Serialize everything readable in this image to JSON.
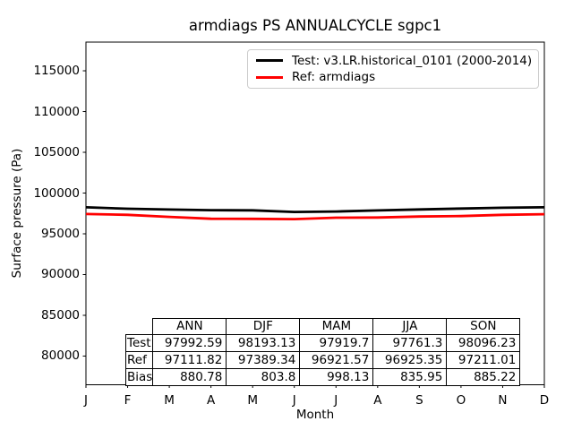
{
  "chart_data": {
    "type": "line",
    "title": "armdiags PS ANNUALCYCLE sgpc1",
    "xlabel": "Month",
    "ylabel": "Surface pressure (Pa)",
    "x_ticklabels": [
      "J",
      "F",
      "M",
      "A",
      "M",
      "J",
      "J",
      "A",
      "S",
      "O",
      "N",
      "D"
    ],
    "y_ticks": [
      80000,
      85000,
      90000,
      95000,
      100000,
      105000,
      110000,
      115000
    ],
    "ylim": [
      76480,
      118520
    ],
    "grid": false,
    "legend_position": "upper right",
    "legend_border_color": "#cccccc",
    "series": [
      {
        "name": "Test: v3.LR.historical_0101 (2000-2014)",
        "color": "#000000",
        "values": [
          98250,
          98080,
          97980,
          97900,
          97880,
          97680,
          97740,
          97865,
          97990,
          98100,
          98200,
          98250
        ]
      },
      {
        "name": "Ref: armdiags",
        "color": "#ff0000",
        "values": [
          97430,
          97330,
          97080,
          96850,
          96835,
          96800,
          96980,
          96995,
          97120,
          97180,
          97335,
          97410
        ]
      }
    ],
    "stats_table": {
      "columns": [
        "ANN",
        "DJF",
        "MAM",
        "JJA",
        "SON"
      ],
      "rows": [
        {
          "label": "Test",
          "values": [
            "97992.59",
            "98193.13",
            "97919.7",
            "97761.3",
            "98096.23"
          ]
        },
        {
          "label": "Ref",
          "values": [
            "97111.82",
            "97389.34",
            "96921.57",
            "96925.35",
            "97211.01"
          ]
        },
        {
          "label": "Bias",
          "values": [
            "880.78",
            "803.8",
            "998.13",
            "835.95",
            "885.22"
          ]
        }
      ]
    }
  }
}
